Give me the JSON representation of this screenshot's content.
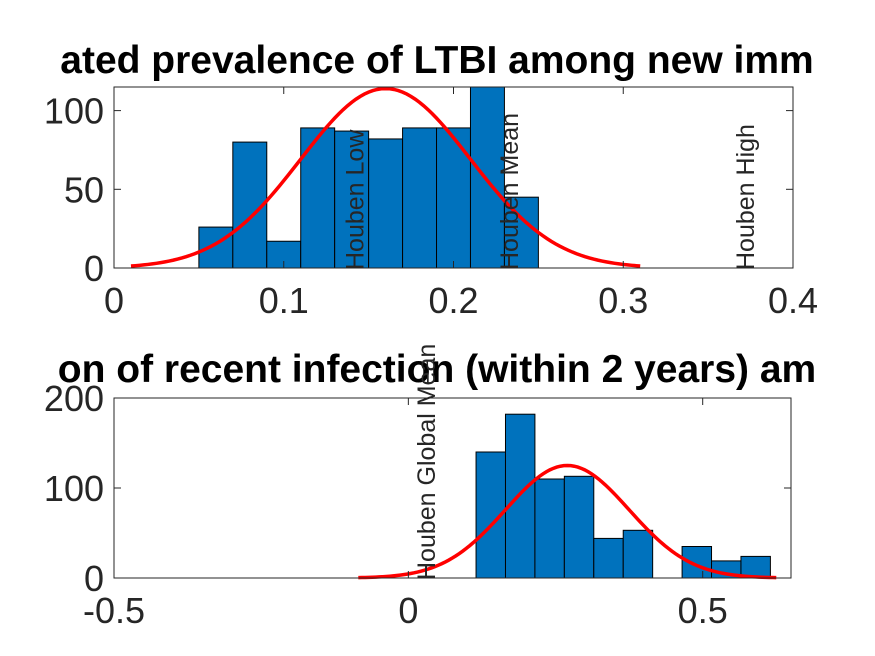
{
  "chart_data": [
    {
      "type": "bar",
      "title": "ated prevalence of LTBI among new imm",
      "xlabel": "",
      "ylabel": "",
      "xlim": [
        0,
        0.4
      ],
      "ylim": [
        0,
        115
      ],
      "xticks": [
        "0",
        "0.1",
        "0.2",
        "0.3",
        "0.4"
      ],
      "xtick_values": [
        0,
        0.1,
        0.2,
        0.3,
        0.4
      ],
      "yticks": [
        "0",
        "50",
        "100"
      ],
      "ytick_values": [
        0,
        50,
        100
      ],
      "bar_color": "#0072BD",
      "curve_color": "#FF0000",
      "bins": [
        {
          "x0": 0.05,
          "x1": 0.07,
          "value": 26
        },
        {
          "x0": 0.07,
          "x1": 0.09,
          "value": 80
        },
        {
          "x0": 0.09,
          "x1": 0.11,
          "value": 17
        },
        {
          "x0": 0.11,
          "x1": 0.13,
          "value": 89
        },
        {
          "x0": 0.13,
          "x1": 0.15,
          "value": 87
        },
        {
          "x0": 0.15,
          "x1": 0.17,
          "value": 82
        },
        {
          "x0": 0.17,
          "x1": 0.19,
          "value": 89
        },
        {
          "x0": 0.19,
          "x1": 0.21,
          "value": 89
        },
        {
          "x0": 0.21,
          "x1": 0.23,
          "value": 115
        },
        {
          "x0": 0.23,
          "x1": 0.25,
          "value": 45
        }
      ],
      "fit": {
        "mean": 0.16,
        "sd": 0.05,
        "peak": 114,
        "x_start": 0.01,
        "x_end": 0.31
      },
      "annotations": [
        {
          "text": "Houben Low",
          "x": 0.147
        },
        {
          "text": "Houben Mean",
          "x": 0.238
        },
        {
          "text": "Houben High",
          "x": 0.377
        }
      ]
    },
    {
      "type": "bar",
      "title": "on of recent infection (within 2 years) am",
      "xlabel": "",
      "ylabel": "",
      "xlim": [
        -0.5,
        0.65
      ],
      "ylim": [
        0,
        200
      ],
      "xticks": [
        "-0.5",
        "0",
        "0.5"
      ],
      "xtick_values": [
        -0.5,
        0,
        0.5
      ],
      "yticks": [
        "0",
        "100",
        "200"
      ],
      "ytick_values": [
        0,
        100,
        200
      ],
      "bar_color": "#0072BD",
      "curve_color": "#FF0000",
      "bins": [
        {
          "x0": 0.115,
          "x1": 0.165,
          "value": 140
        },
        {
          "x0": 0.165,
          "x1": 0.215,
          "value": 182
        },
        {
          "x0": 0.215,
          "x1": 0.265,
          "value": 110
        },
        {
          "x0": 0.265,
          "x1": 0.315,
          "value": 113
        },
        {
          "x0": 0.315,
          "x1": 0.365,
          "value": 44
        },
        {
          "x0": 0.365,
          "x1": 0.415,
          "value": 53
        },
        {
          "x0": 0.465,
          "x1": 0.515,
          "value": 35
        },
        {
          "x0": 0.515,
          "x1": 0.565,
          "value": 19
        },
        {
          "x0": 0.565,
          "x1": 0.615,
          "value": 24
        }
      ],
      "fit": {
        "mean": 0.27,
        "sd": 0.105,
        "peak": 125,
        "x_start": -0.085,
        "x_end": 0.625
      },
      "annotations": [
        {
          "text": "Houben Global Mean",
          "x": 0.045
        }
      ]
    }
  ]
}
